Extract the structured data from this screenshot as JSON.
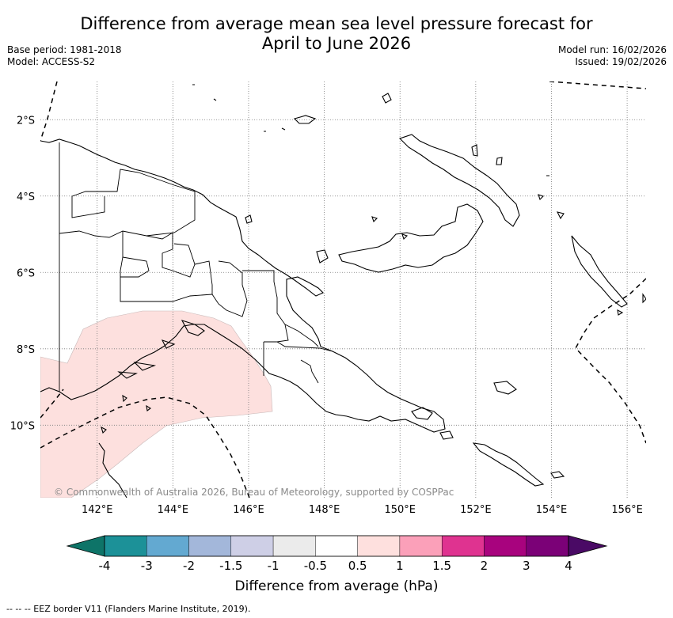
{
  "header": {
    "title_line1": "Difference from average mean sea level pressure forecast for",
    "title_line2": "April to June 2026",
    "base_period": "Base period: 1981-2018",
    "model": "Model: ACCESS-S2",
    "model_run": "Model run: 16/02/2026",
    "issued": "Issued: 19/02/2026"
  },
  "map": {
    "lat_labels": [
      "2°S",
      "4°S",
      "6°S",
      "8°S",
      "10°S"
    ],
    "lon_labels": [
      "142°E",
      "144°E",
      "146°E",
      "148°E",
      "150°E",
      "152°E",
      "154°E",
      "156°E"
    ],
    "lat_values": [
      -2,
      -4,
      -6,
      -8,
      -10
    ],
    "lon_values": [
      142,
      144,
      146,
      148,
      150,
      152,
      154,
      156
    ],
    "lon_range": [
      140.5,
      156.5
    ],
    "lat_range": [
      -11.9,
      -1.0
    ],
    "anomaly_region": {
      "category": "0.5 to 1 hPa",
      "color": "#fde0de"
    },
    "copyright": "© Commonwealth of Australia 2026, Bureau of Meteorology, supported by COSPPac"
  },
  "colorbar": {
    "title": "Difference from average (hPa)",
    "tick_labels": [
      "-4",
      "-3",
      "-2",
      "-1.5",
      "-1",
      "-0.5",
      "0.5",
      "1",
      "1.5",
      "2",
      "3",
      "4"
    ],
    "colors": [
      "#0e7468",
      "#1c9198",
      "#63a9d1",
      "#a3b7da",
      "#cecfe6",
      "#ebebeb",
      "#ffffff",
      "#fee0de",
      "#fba0b9",
      "#df3390",
      "#a8037e",
      "#7b0177",
      "#4a0a65"
    ]
  },
  "footnote": "--  --  -- EEZ border V11 (Flanders Marine Institute, 2019)."
}
